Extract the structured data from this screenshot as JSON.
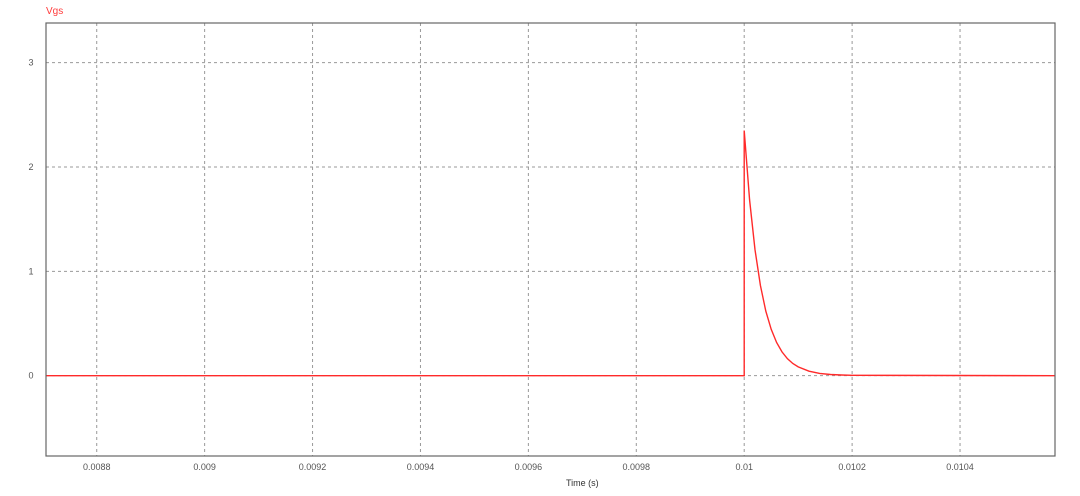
{
  "chart_data": {
    "type": "line",
    "title": "Vgs",
    "xlabel": "Time (s)",
    "ylabel": "",
    "xlim": [
      0.008706,
      0.010576
    ],
    "ylim": [
      -0.77,
      3.38
    ],
    "grid": true,
    "xticks": [
      "0.0088",
      "0.009",
      "0.0092",
      "0.0094",
      "0.0096",
      "0.0098",
      "0.01",
      "0.0102",
      "0.0104"
    ],
    "yticks": [
      "0",
      "1",
      "2",
      "3"
    ],
    "series": [
      {
        "name": "Vgs",
        "color": "#ff2a2a",
        "x": [
          0.008706,
          0.01,
          0.01,
          0.01001,
          0.01002,
          0.01003,
          0.01004,
          0.01005,
          0.01006,
          0.01007,
          0.01008,
          0.01009,
          0.0101,
          0.01012,
          0.01014,
          0.01016,
          0.01018,
          0.0102,
          0.010576
        ],
        "y": [
          0,
          0,
          2.35,
          1.684,
          1.207,
          0.865,
          0.619,
          0.444,
          0.318,
          0.228,
          0.163,
          0.117,
          0.084,
          0.043,
          0.022,
          0.011,
          0.006,
          0.003,
          0
        ]
      }
    ]
  }
}
